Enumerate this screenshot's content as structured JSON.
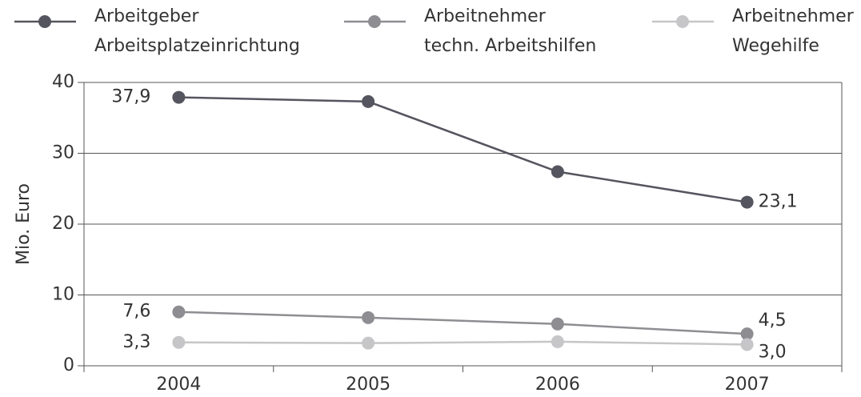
{
  "chart_data": {
    "type": "line",
    "categories": [
      "2004",
      "2005",
      "2006",
      "2007"
    ],
    "series": [
      {
        "name": "Arbeitgeber\nArbeitsplatzeinrichtung",
        "color": "#55555f",
        "values": [
          37.9,
          37.3,
          27.4,
          23.1
        ],
        "value_labels": [
          "37,9",
          null,
          null,
          "23,1"
        ]
      },
      {
        "name": "Arbeitnehmer\ntechn. Arbeitshilfen",
        "color": "#8e8e92",
        "values": [
          7.6,
          6.8,
          5.9,
          4.5
        ],
        "value_labels": [
          "7,6",
          null,
          null,
          "4,5"
        ]
      },
      {
        "name": "Arbeitnehmer\nWegehilfe",
        "color": "#c6c6c8",
        "values": [
          3.3,
          3.2,
          3.4,
          3.0
        ],
        "value_labels": [
          "3,3",
          null,
          null,
          "3,0"
        ]
      }
    ],
    "y_label": "Mio. Euro",
    "ylim": [
      0,
      40
    ],
    "yticks": [
      0,
      10,
      20,
      30,
      40
    ],
    "grid": true,
    "legend": "top"
  }
}
